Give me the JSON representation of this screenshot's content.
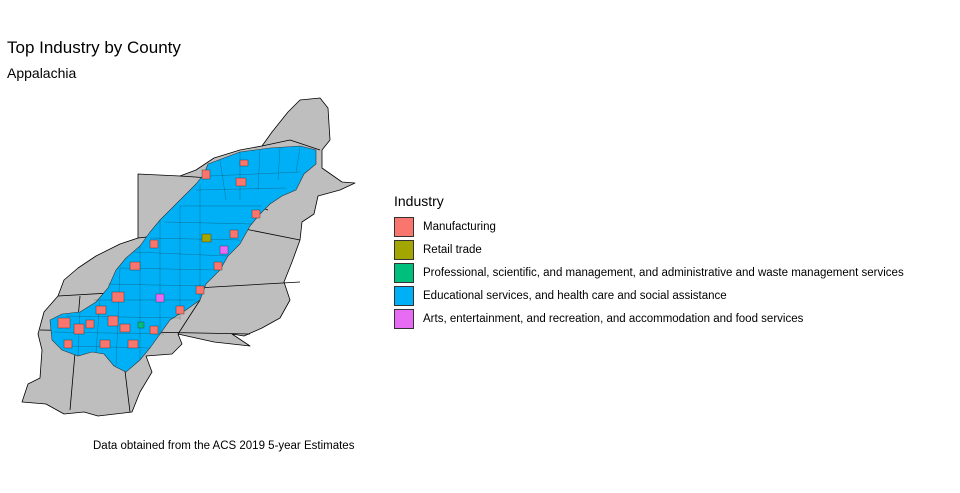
{
  "title": "Top Industry by County",
  "subtitle": "Appalachia",
  "caption": "Data obtained from the ACS 2019 5-year Estimates",
  "legend": {
    "title": "Industry",
    "items": [
      {
        "label": "Manufacturing",
        "color": "#F8766D"
      },
      {
        "label": "Retail trade",
        "color": "#A3A500"
      },
      {
        "label": "Professional, scientific, and management, and administrative and waste management services",
        "color": "#00BF7D"
      },
      {
        "label": "Educational services, and health care and social assistance",
        "color": "#00B0F6"
      },
      {
        "label": "Arts, entertainment, and recreation, and accommodation and food services",
        "color": "#E76BF3"
      }
    ]
  },
  "map": {
    "state_fill": "#BEBEBE",
    "region": "Appalachia"
  }
}
